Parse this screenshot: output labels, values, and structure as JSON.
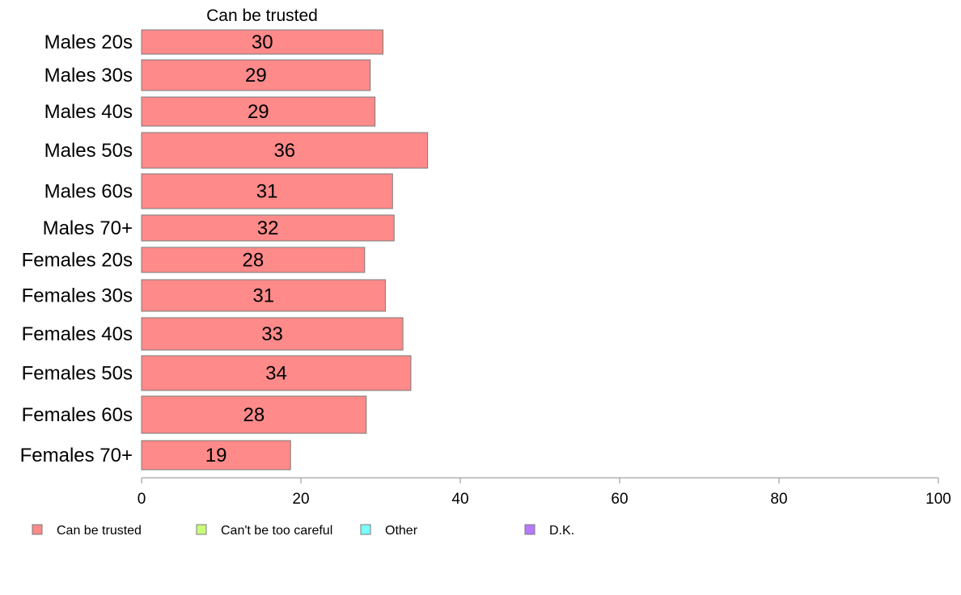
{
  "chart_data": {
    "type": "bar",
    "orientation": "horizontal",
    "stacked": true,
    "title": "",
    "xlabel": "",
    "ylabel": "",
    "xlim": [
      0,
      100
    ],
    "x_ticks": [
      0,
      20,
      40,
      60,
      80,
      100
    ],
    "grid": false,
    "legend_position": "bottom-left",
    "column_header": "Can be trusted",
    "categories": [
      "Males 20s",
      "Males 30s",
      "Males 40s",
      "Males 50s",
      "Males 60s",
      "Males 70+",
      "Females 20s",
      "Females 30s",
      "Females 40s",
      "Females 50s",
      "Females 60s",
      "Females 70+"
    ],
    "series": [
      {
        "name": "Can be trusted",
        "color": "#FF8A8A",
        "values": [
          30.3,
          28.7,
          29.3,
          35.9,
          31.5,
          31.7,
          28.0,
          30.6,
          32.8,
          33.8,
          28.2,
          18.7
        ],
        "labels": [
          "30",
          "29",
          "29",
          "36",
          "31",
          "32",
          "28",
          "31",
          "33",
          "34",
          "28",
          "19"
        ]
      },
      {
        "name": "Can't be too careful",
        "color": "#C8FF7A"
      },
      {
        "name": "Other",
        "color": "#7AFFFF"
      },
      {
        "name": "D.K.",
        "color": "#B57AFF"
      }
    ]
  }
}
